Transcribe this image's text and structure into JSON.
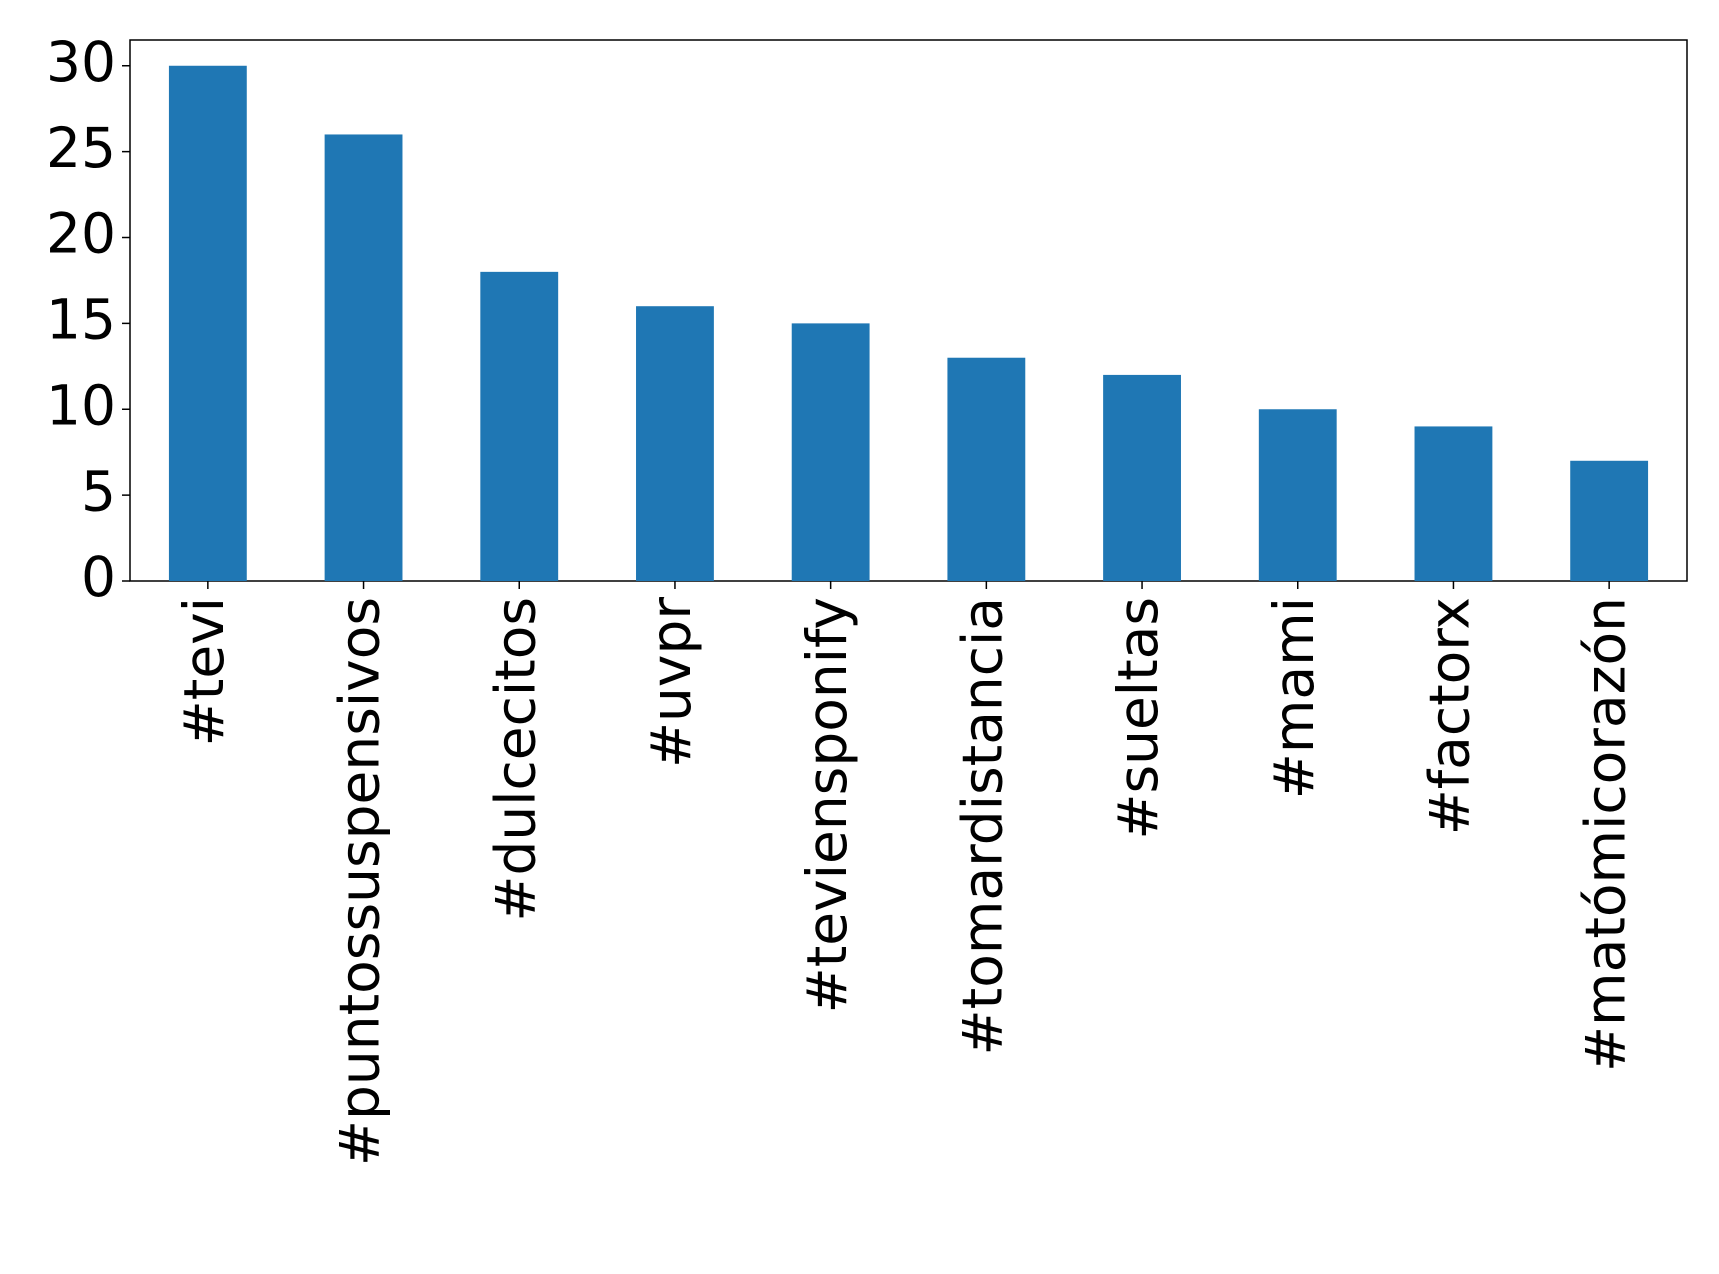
{
  "chart_data": {
    "type": "bar",
    "categories": [
      "#tevi",
      "#puntossuspensivos",
      "#dulcecitos",
      "#uvpr",
      "#teviensponify",
      "#tomardistancia",
      "#sueltas",
      "#mami",
      "#factorx",
      "#matómicorazón"
    ],
    "values": [
      30,
      26,
      18,
      16,
      15,
      13,
      12,
      10,
      9,
      7
    ],
    "color": "#1f77b4",
    "ylim": [
      0,
      31.5
    ],
    "yticks": [
      0,
      5,
      10,
      15,
      20,
      25,
      30
    ],
    "grid": false
  }
}
